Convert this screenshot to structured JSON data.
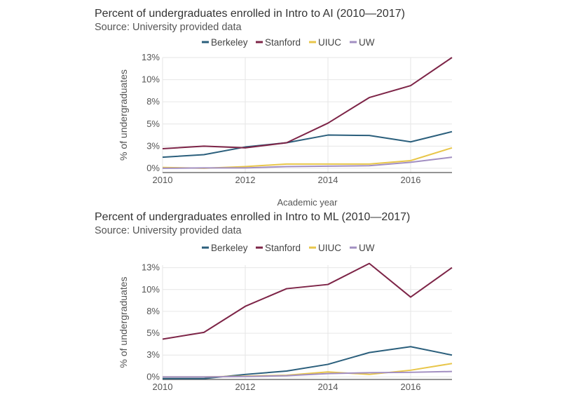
{
  "chart_data": [
    {
      "type": "line",
      "title": "Percent of undergraduates enrolled in Intro to AI (2010—2017)",
      "subtitle": "Source: University provided data",
      "xlabel": "Academic year",
      "ylabel": "% of undergraduates",
      "x": [
        2010,
        2011,
        2012,
        2013,
        2014,
        2015,
        2016,
        2017
      ],
      "xticks": [
        2010,
        2012,
        2014,
        2016
      ],
      "xlim": [
        2010,
        2017
      ],
      "yticks": [
        0,
        2.6,
        5.2,
        7.8,
        10.4,
        13
      ],
      "ytick_labels": [
        "0%",
        "3%",
        "5%",
        "8%",
        "10%",
        "13%"
      ],
      "ylim": [
        -0.5,
        13
      ],
      "grid": true,
      "legend_position": "top",
      "series": [
        {
          "name": "Berkeley",
          "color": "#2b5f7c",
          "values": [
            1.3,
            1.6,
            2.5,
            3.0,
            3.9,
            3.85,
            3.1,
            4.3
          ]
        },
        {
          "name": "Stanford",
          "color": "#7d2447",
          "values": [
            2.3,
            2.6,
            2.4,
            3.0,
            5.3,
            8.3,
            9.7,
            13.0
          ]
        },
        {
          "name": "UIUC",
          "color": "#e8c64a",
          "values": [
            0.1,
            0.0,
            0.2,
            0.5,
            0.5,
            0.5,
            0.9,
            2.4
          ]
        },
        {
          "name": "UW",
          "color": "#a28fc2",
          "values": [
            0.0,
            0.05,
            0.05,
            0.2,
            0.25,
            0.3,
            0.7,
            1.3
          ]
        }
      ]
    },
    {
      "type": "line",
      "title": "Percent of undergraduates enrolled in Intro to ML (2010—2017)",
      "subtitle": "Source: University provided data",
      "xlabel": "",
      "ylabel": "% of undergraduates",
      "x": [
        2010,
        2011,
        2012,
        2013,
        2014,
        2015,
        2016,
        2017
      ],
      "xticks": [
        2010,
        2012,
        2014,
        2016
      ],
      "xlim": [
        2010,
        2017
      ],
      "yticks": [
        0,
        2.6,
        5.2,
        7.8,
        10.4,
        13
      ],
      "ytick_labels": [
        "0%",
        "3%",
        "5%",
        "8%",
        "10%",
        "13%"
      ],
      "ylim": [
        -0.3,
        13.3
      ],
      "grid": true,
      "legend_position": "top",
      "series": [
        {
          "name": "Berkeley",
          "color": "#2b5f7c",
          "values": [
            -0.2,
            -0.2,
            0.3,
            0.7,
            1.5,
            2.9,
            3.6,
            2.6
          ]
        },
        {
          "name": "Stanford",
          "color": "#7d2447",
          "values": [
            4.5,
            5.3,
            8.4,
            10.5,
            11.0,
            13.5,
            9.5,
            13.0
          ]
        },
        {
          "name": "UIUC",
          "color": "#e8c64a",
          "values": [
            0.0,
            0.0,
            0.1,
            0.2,
            0.6,
            0.3,
            0.8,
            1.6
          ]
        },
        {
          "name": "UW",
          "color": "#a28fc2",
          "values": [
            0.0,
            0.0,
            0.05,
            0.15,
            0.4,
            0.5,
            0.55,
            0.65
          ]
        }
      ]
    }
  ]
}
